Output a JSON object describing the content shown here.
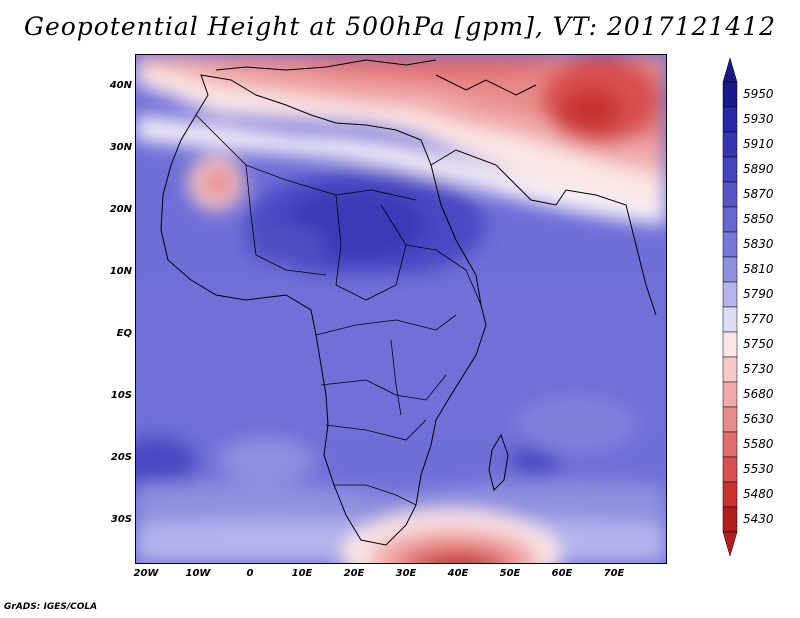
{
  "title": "Geopotential Height at 500hPa [gpm], VT: 2017121412",
  "map": {
    "variable": "Geopotential Height at 500hPa",
    "units": "gpm",
    "valid_time": "2017121412",
    "lon_range": [
      -22,
      80
    ],
    "lat_range": [
      -37,
      45
    ],
    "lat_labels": [
      "40N",
      "30N",
      "20N",
      "10N",
      "EQ",
      "10S",
      "20S",
      "30S"
    ],
    "lat_values": [
      40,
      30,
      20,
      10,
      0,
      -10,
      -20,
      -30
    ],
    "lon_labels": [
      "20W",
      "10W",
      "0",
      "10E",
      "20E",
      "30E",
      "40E",
      "50E",
      "60E",
      "70E"
    ],
    "lon_values": [
      -20,
      -10,
      0,
      10,
      20,
      30,
      40,
      50,
      60,
      70
    ]
  },
  "colorbar": {
    "levels": [
      "5950",
      "5930",
      "5910",
      "5890",
      "5870",
      "5850",
      "5830",
      "5810",
      "5790",
      "5770",
      "5750",
      "5730",
      "5680",
      "5630",
      "5580",
      "5530",
      "5480",
      "5430"
    ],
    "colors": [
      "#19198c",
      "#2727a8",
      "#3535b4",
      "#4444c0",
      "#5656c8",
      "#6666d0",
      "#7878d8",
      "#9090e0",
      "#b4b4ec",
      "#dcdcf6",
      "#fbe6e6",
      "#f6c8c8",
      "#f0aaaa",
      "#e88c8c",
      "#e06e6e",
      "#d85050",
      "#c83232",
      "#b01e1e"
    ],
    "top_arrow_color": "#19198c",
    "bottom_arrow_color": "#b01e1e"
  },
  "credit": "GrADS: IGES/COLA"
}
